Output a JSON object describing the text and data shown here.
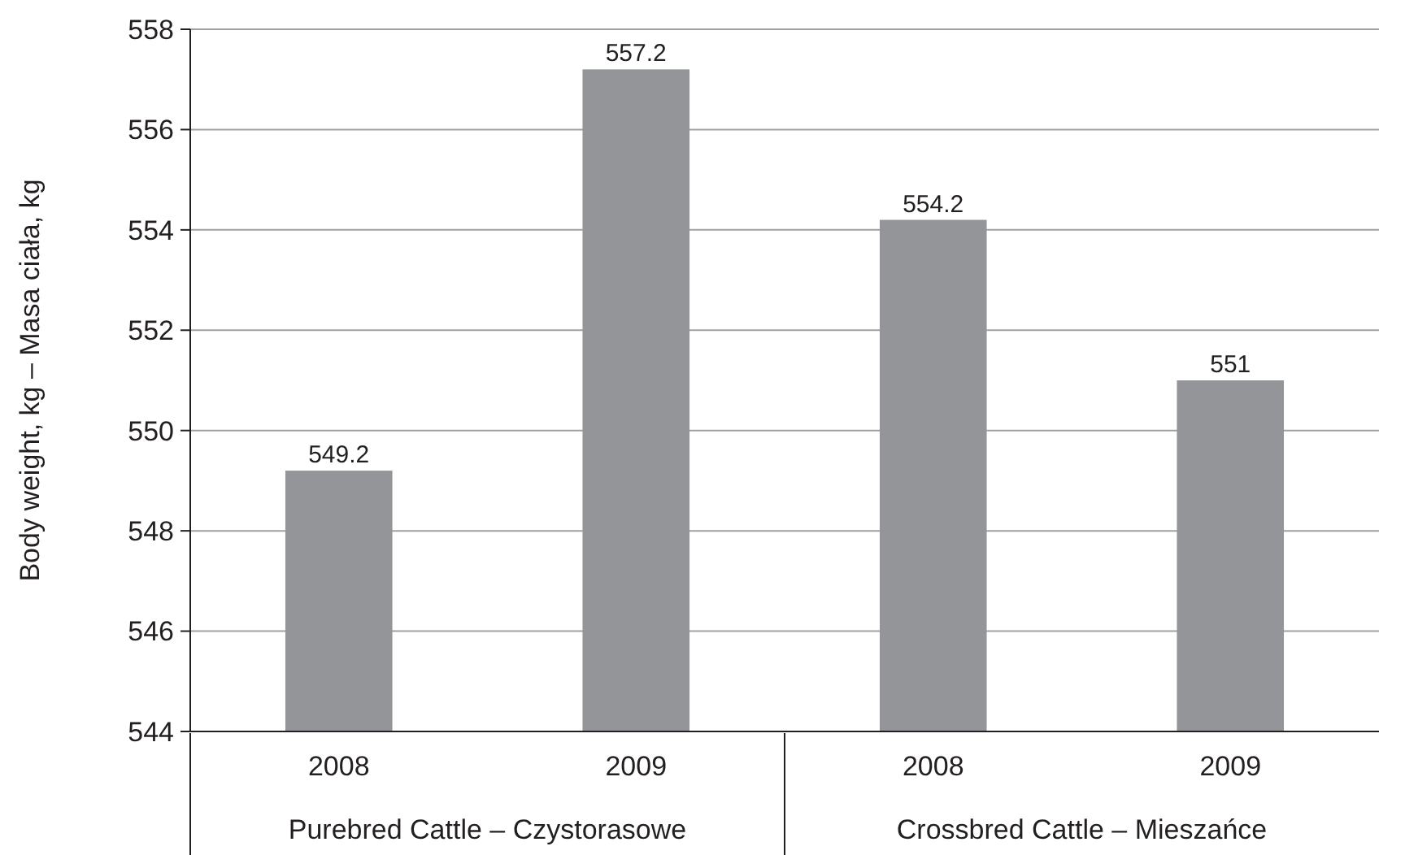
{
  "chart_data": {
    "type": "bar",
    "ylabel": "Body weight, kg – Masa ciała, kg",
    "categories": [
      "2008",
      "2009",
      "2008",
      "2009"
    ],
    "values": [
      549.2,
      557.2,
      554.2,
      551
    ],
    "color": "#939598",
    "ylim": [
      544,
      558
    ],
    "yticks": [
      544,
      546,
      548,
      550,
      552,
      554,
      556,
      558
    ],
    "grid": "y",
    "data_labels": true,
    "annotations": [
      "Purebred Cattle – Czystorasowe",
      "Crossbred Cattle – Mieszańce"
    ]
  }
}
